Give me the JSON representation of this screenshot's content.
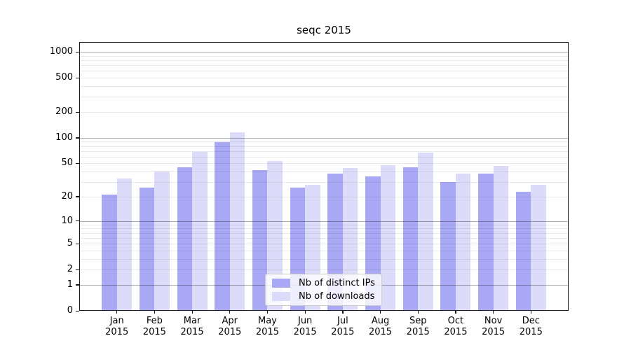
{
  "chart_data": {
    "type": "bar",
    "title": "seqc 2015",
    "categories": [
      "Jan",
      "Feb",
      "Mar",
      "Apr",
      "May",
      "Jun",
      "Jul",
      "Aug",
      "Sep",
      "Oct",
      "Nov",
      "Dec"
    ],
    "category_year": "2015",
    "series": [
      {
        "name": "Nb of distinct IPs",
        "color": "#a8a8f5",
        "values": [
          21,
          26,
          45,
          89,
          42,
          26,
          38,
          35,
          45,
          30,
          38,
          23
        ]
      },
      {
        "name": "Nb of downloads",
        "color": "#dcdcfa",
        "values": [
          33,
          40,
          69,
          115,
          53,
          28,
          44,
          48,
          67,
          38,
          47,
          28
        ]
      }
    ],
    "y_ticks": [
      0,
      1,
      2,
      5,
      10,
      20,
      50,
      100,
      200,
      500,
      1000
    ],
    "y_minor_gridlines": [
      2,
      3,
      4,
      5,
      6,
      7,
      8,
      9,
      20,
      30,
      40,
      50,
      60,
      70,
      80,
      90,
      200,
      300,
      400,
      500,
      600,
      700,
      800,
      900
    ],
    "y_major_gridlines": [
      1,
      10,
      100,
      1000
    ],
    "y_scale": "log1p",
    "ylim": [
      0,
      1300
    ],
    "grid": "horizontal",
    "legend_position": "lower-center",
    "colors": {
      "axis": "#1a1a1a",
      "background": "#ffffff"
    }
  }
}
